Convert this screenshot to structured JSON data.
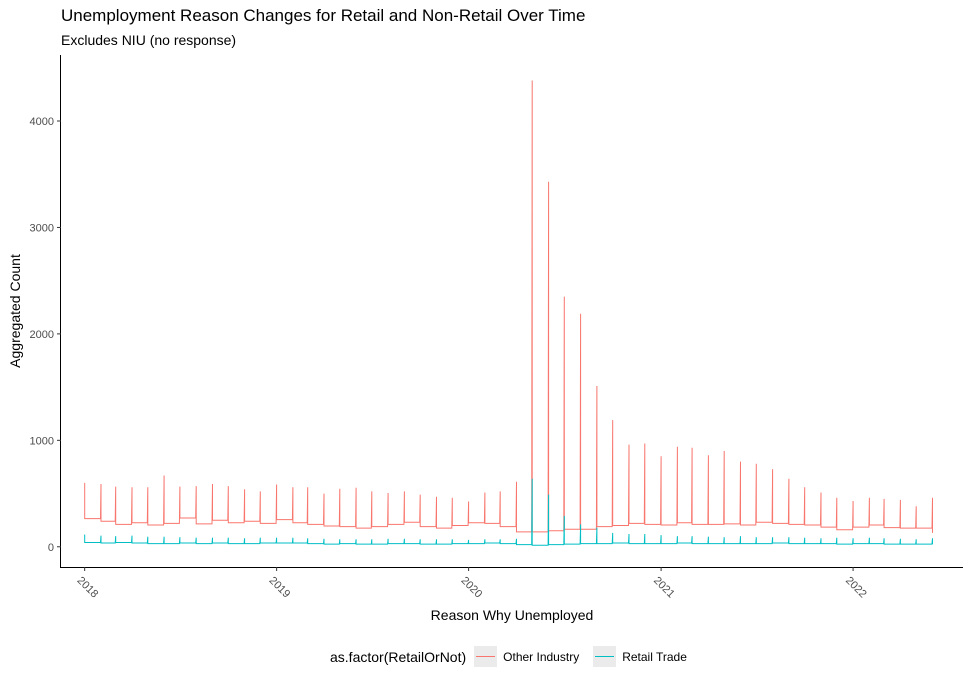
{
  "title": "Unemployment Reason Changes for Retail and Non-Retail Over Time",
  "subtitle": "Excludes NIU (no response)",
  "legend": {
    "title": "as.factor(RetailOrNot)",
    "items": [
      {
        "label": "Other Industry",
        "color": "#F8766D"
      },
      {
        "label": "Retail Trade",
        "color": "#00BFC4"
      }
    ]
  },
  "chart_data": {
    "type": "line",
    "xlabel": "Reason Why Unemployed",
    "ylabel": "Aggregated Count",
    "x_ticks": [
      "2018",
      "2019",
      "2020",
      "2021",
      "2022"
    ],
    "y_ticks": [
      0,
      1000,
      2000,
      3000,
      4000
    ],
    "ylim": [
      -190,
      4620
    ],
    "xlim": [
      "2017-11-17",
      "2022-07-29"
    ],
    "grid": false,
    "legend_position": "bottom",
    "months": [
      "2018-01",
      "2018-02",
      "2018-03",
      "2018-04",
      "2018-05",
      "2018-06",
      "2018-07",
      "2018-08",
      "2018-09",
      "2018-10",
      "2018-11",
      "2018-12",
      "2019-01",
      "2019-02",
      "2019-03",
      "2019-04",
      "2019-05",
      "2019-06",
      "2019-07",
      "2019-08",
      "2019-09",
      "2019-10",
      "2019-11",
      "2019-12",
      "2020-01",
      "2020-02",
      "2020-03",
      "2020-04",
      "2020-05",
      "2020-06",
      "2020-07",
      "2020-08",
      "2020-09",
      "2020-10",
      "2020-11",
      "2020-12",
      "2021-01",
      "2021-02",
      "2021-03",
      "2021-04",
      "2021-05",
      "2021-06",
      "2021-07",
      "2021-08",
      "2021-09",
      "2021-10",
      "2021-11",
      "2021-12",
      "2022-01",
      "2022-02",
      "2022-03",
      "2022-04",
      "2022-05",
      "2022-06"
    ],
    "series": [
      {
        "name": "Other Industry",
        "color": "#F8766D",
        "peak": [
          600,
          590,
          565,
          560,
          560,
          670,
          565,
          570,
          590,
          570,
          540,
          520,
          585,
          560,
          560,
          500,
          545,
          555,
          520,
          505,
          520,
          490,
          470,
          460,
          425,
          510,
          520,
          610,
          4380,
          3430,
          2350,
          2190,
          1510,
          1190,
          960,
          970,
          850,
          940,
          930,
          860,
          900,
          800,
          780,
          730,
          640,
          560,
          510,
          460,
          430,
          460,
          450,
          440,
          380,
          460
        ],
        "base": [
          265,
          240,
          210,
          225,
          205,
          220,
          270,
          215,
          250,
          225,
          240,
          220,
          255,
          225,
          210,
          195,
          190,
          175,
          190,
          210,
          230,
          190,
          175,
          200,
          225,
          220,
          190,
          140,
          140,
          150,
          165,
          165,
          190,
          200,
          220,
          210,
          205,
          225,
          210,
          210,
          215,
          205,
          230,
          220,
          210,
          205,
          185,
          160,
          185,
          205,
          180,
          175,
          175,
          130
        ]
      },
      {
        "name": "Retail Trade",
        "color": "#00BFC4",
        "peak": [
          115,
          105,
          100,
          105,
          95,
          95,
          90,
          85,
          85,
          85,
          80,
          85,
          85,
          85,
          80,
          75,
          70,
          70,
          70,
          75,
          75,
          70,
          70,
          70,
          65,
          70,
          70,
          75,
          640,
          490,
          290,
          210,
          180,
          130,
          120,
          120,
          110,
          100,
          100,
          95,
          90,
          100,
          90,
          90,
          90,
          85,
          80,
          85,
          80,
          85,
          80,
          75,
          70,
          80
        ],
        "base": [
          40,
          35,
          40,
          35,
          30,
          30,
          35,
          30,
          35,
          30,
          30,
          35,
          35,
          35,
          30,
          25,
          30,
          25,
          25,
          30,
          30,
          25,
          25,
          30,
          30,
          35,
          30,
          20,
          15,
          20,
          25,
          30,
          30,
          35,
          30,
          30,
          30,
          35,
          30,
          30,
          30,
          30,
          30,
          35,
          30,
          30,
          30,
          25,
          30,
          30,
          25,
          25,
          25,
          25
        ]
      }
    ]
  }
}
